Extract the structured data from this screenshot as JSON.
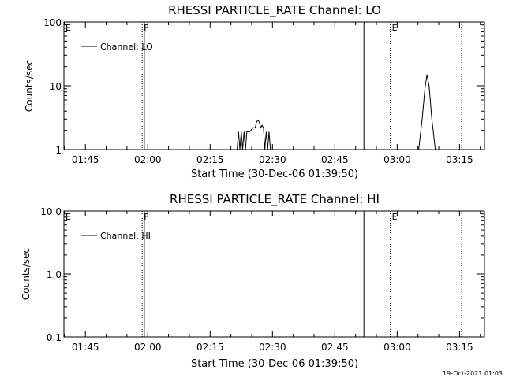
{
  "footer_timestamp": "19-Oct-2021 01:03",
  "chart_data": [
    {
      "type": "line",
      "title": "RHESSI PARTICLE_RATE Channel: LO",
      "xlabel": "Start Time (30-Dec-06 01:39:50)",
      "ylabel": "Counts/sec",
      "y_scale": "log",
      "xlim": [
        "01:39:50",
        "03:21:00"
      ],
      "ylim": [
        1,
        100
      ],
      "x_ticks": [
        "01:45",
        "02:00",
        "02:15",
        "02:30",
        "02:45",
        "03:00",
        "03:15"
      ],
      "y_ticks": [
        "1",
        "10",
        "100"
      ],
      "legend": {
        "label": "Channel: LO",
        "placement": "top-left"
      },
      "markers": [
        {
          "time": "01:39:50",
          "label": "E",
          "style": "none"
        },
        {
          "time": "01:58:40",
          "label": "F",
          "style": "dotted"
        },
        {
          "time": "01:59:10",
          "label": "",
          "style": "solid"
        },
        {
          "time": "02:52:00",
          "label": "",
          "style": "solid"
        },
        {
          "time": "02:58:20",
          "label": "E",
          "style": "dotted"
        },
        {
          "time": "03:15:30",
          "label": "",
          "style": "dotted"
        }
      ],
      "series": [
        {
          "name": "Channel: LO",
          "points": [
            [
              "02:21:30",
              1
            ],
            [
              "02:21:50",
              1.9
            ],
            [
              "02:22:10",
              1
            ],
            [
              "02:22:30",
              1.9
            ],
            [
              "02:22:50",
              1
            ],
            [
              "02:23:10",
              1.9
            ],
            [
              "02:23:30",
              1
            ],
            [
              "02:23:50",
              1.9
            ],
            [
              "02:24:30",
              1.9
            ],
            [
              "02:25:20",
              2.2
            ],
            [
              "02:25:50",
              2.2
            ],
            [
              "02:26:10",
              2.7
            ],
            [
              "02:26:30",
              2.9
            ],
            [
              "02:26:50",
              2.7
            ],
            [
              "02:27:10",
              2.2
            ],
            [
              "02:27:30",
              2.4
            ],
            [
              "02:27:50",
              2.2
            ],
            [
              "02:28:10",
              1
            ],
            [
              "02:28:30",
              1.9
            ],
            [
              "02:28:50",
              1
            ],
            [
              "02:29:10",
              1.9
            ],
            [
              "02:29:30",
              1
            ]
          ]
        },
        {
          "name": "Channel: LO",
          "points": [
            [
              "03:05:10",
              1
            ],
            [
              "03:06:00",
              3
            ],
            [
              "03:06:40",
              9
            ],
            [
              "03:07:10",
              15
            ],
            [
              "03:07:40",
              10
            ],
            [
              "03:08:20",
              3
            ],
            [
              "03:09:10",
              1
            ]
          ]
        }
      ]
    },
    {
      "type": "line",
      "title": "RHESSI PARTICLE_RATE Channel: HI",
      "xlabel": "Start Time (30-Dec-06 01:39:50)",
      "ylabel": "Counts/sec",
      "y_scale": "log",
      "xlim": [
        "01:39:50",
        "03:21:00"
      ],
      "ylim": [
        0.1,
        10
      ],
      "x_ticks": [
        "01:45",
        "02:00",
        "02:15",
        "02:30",
        "02:45",
        "03:00",
        "03:15"
      ],
      "y_ticks": [
        "0.1",
        "1.0",
        "10.0"
      ],
      "legend": {
        "label": "Channel: HI",
        "placement": "top-left"
      },
      "markers": [
        {
          "time": "01:39:50",
          "label": "E",
          "style": "none"
        },
        {
          "time": "01:58:40",
          "label": "F",
          "style": "dotted"
        },
        {
          "time": "01:59:10",
          "label": "",
          "style": "solid"
        },
        {
          "time": "02:52:00",
          "label": "",
          "style": "solid"
        },
        {
          "time": "02:58:20",
          "label": "E",
          "style": "dotted"
        },
        {
          "time": "03:15:30",
          "label": "",
          "style": "dotted"
        }
      ],
      "series": []
    }
  ]
}
